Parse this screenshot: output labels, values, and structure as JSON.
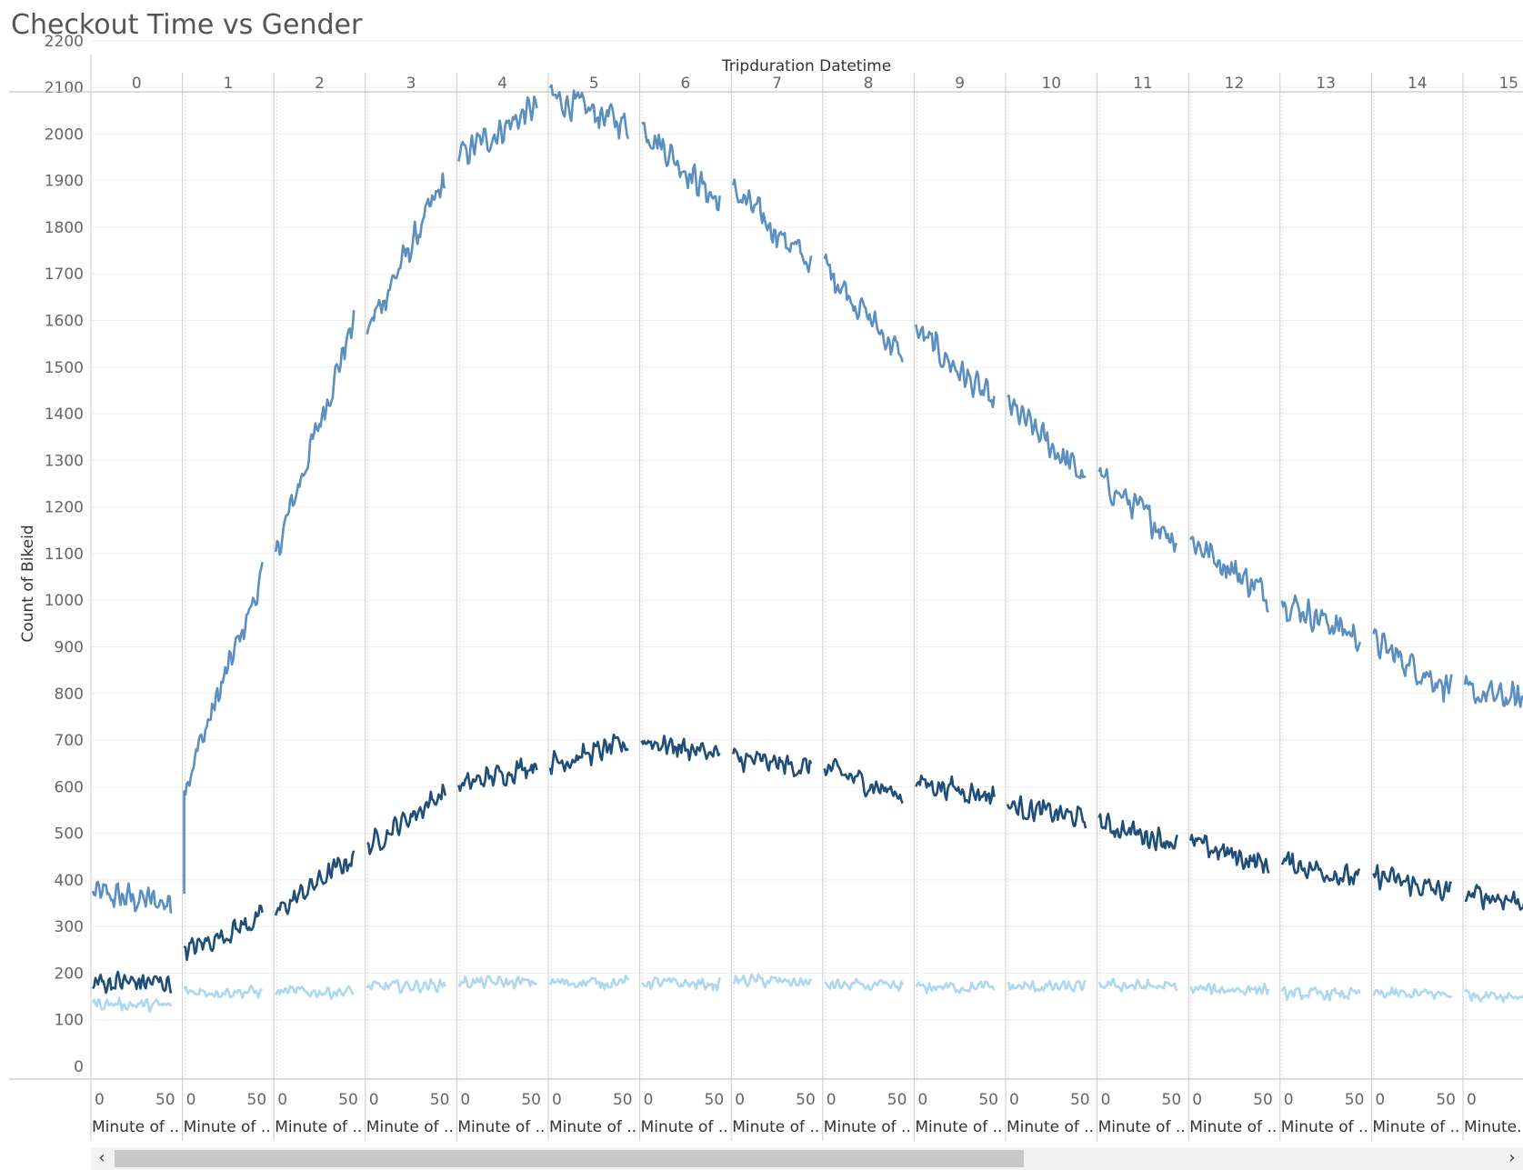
{
  "title": "Checkout Time vs Gender",
  "colors": {
    "title": "#555555",
    "grid": "#eeeeee",
    "divider": "#cccccc",
    "series_male": "#5b8fc0",
    "series_female": "#1f4e79",
    "series_unknown": "#aed8f0"
  },
  "icons": {
    "scroll_left": "chevron-left-icon",
    "scroll_right": "chevron-right-icon"
  },
  "scrollbar": {
    "left_glyph": "‹",
    "right_glyph": "›"
  },
  "chart_data": {
    "type": "line",
    "title": "Checkout Time vs Gender",
    "ylabel": "Count of Bikeid",
    "column_header": "Tripduration Datetime",
    "pane_footer_label": "Minute of ..",
    "pane_footer_label_last": "Minute...",
    "panes": [
      "0",
      "1",
      "2",
      "3",
      "4",
      "5",
      "6",
      "7",
      "8",
      "9",
      "10",
      "11",
      "12",
      "13",
      "14",
      "15"
    ],
    "x_ticks": [
      "0",
      "50"
    ],
    "y_ticks": [
      "0",
      "100",
      "200",
      "300",
      "400",
      "500",
      "600",
      "700",
      "800",
      "900",
      "1000",
      "1100",
      "1200",
      "1300",
      "1400",
      "1500",
      "1600",
      "1700",
      "1800",
      "1900",
      "2000",
      "2100",
      "2200"
    ],
    "ylim": [
      0,
      2250
    ],
    "xlim": [
      0,
      59
    ],
    "grid": true,
    "legend": "none",
    "series": [
      {
        "key": "series_male",
        "anchors": [
          [
            0,
            370,
            350
          ],
          [
            1,
            600,
            1050
          ],
          [
            2,
            1100,
            1600
          ],
          [
            3,
            1580,
            1900
          ],
          [
            4,
            1950,
            2060
          ],
          [
            5,
            2080,
            2020
          ],
          [
            6,
            2020,
            1850
          ],
          [
            7,
            1880,
            1720
          ],
          [
            8,
            1720,
            1520
          ],
          [
            9,
            1580,
            1420
          ],
          [
            10,
            1420,
            1260
          ],
          [
            11,
            1260,
            1130
          ],
          [
            12,
            1130,
            1010
          ],
          [
            13,
            1000,
            920
          ],
          [
            14,
            910,
            810
          ],
          [
            15,
            800,
            780
          ]
        ],
        "noise": 40
      },
      {
        "key": "series_female",
        "anchors": [
          [
            0,
            180,
            180
          ],
          [
            1,
            245,
            320
          ],
          [
            2,
            330,
            450
          ],
          [
            3,
            470,
            590
          ],
          [
            4,
            600,
            650
          ],
          [
            5,
            650,
            690
          ],
          [
            6,
            700,
            670
          ],
          [
            7,
            660,
            640
          ],
          [
            8,
            640,
            580
          ],
          [
            9,
            610,
            580
          ],
          [
            10,
            560,
            530
          ],
          [
            11,
            520,
            480
          ],
          [
            12,
            480,
            430
          ],
          [
            13,
            440,
            400
          ],
          [
            14,
            410,
            370
          ],
          [
            15,
            370,
            350
          ]
        ],
        "noise": 30
      },
      {
        "key": "series_unknown",
        "anchors": [
          [
            0,
            135,
            130
          ],
          [
            1,
            160,
            160
          ],
          [
            2,
            160,
            160
          ],
          [
            3,
            170,
            175
          ],
          [
            4,
            180,
            180
          ],
          [
            5,
            180,
            180
          ],
          [
            6,
            180,
            175
          ],
          [
            7,
            185,
            180
          ],
          [
            8,
            175,
            170
          ],
          [
            9,
            170,
            170
          ],
          [
            10,
            170,
            170
          ],
          [
            11,
            175,
            170
          ],
          [
            12,
            165,
            165
          ],
          [
            13,
            155,
            155
          ],
          [
            14,
            155,
            155
          ],
          [
            15,
            155,
            150
          ]
        ],
        "noise": 16
      }
    ]
  }
}
